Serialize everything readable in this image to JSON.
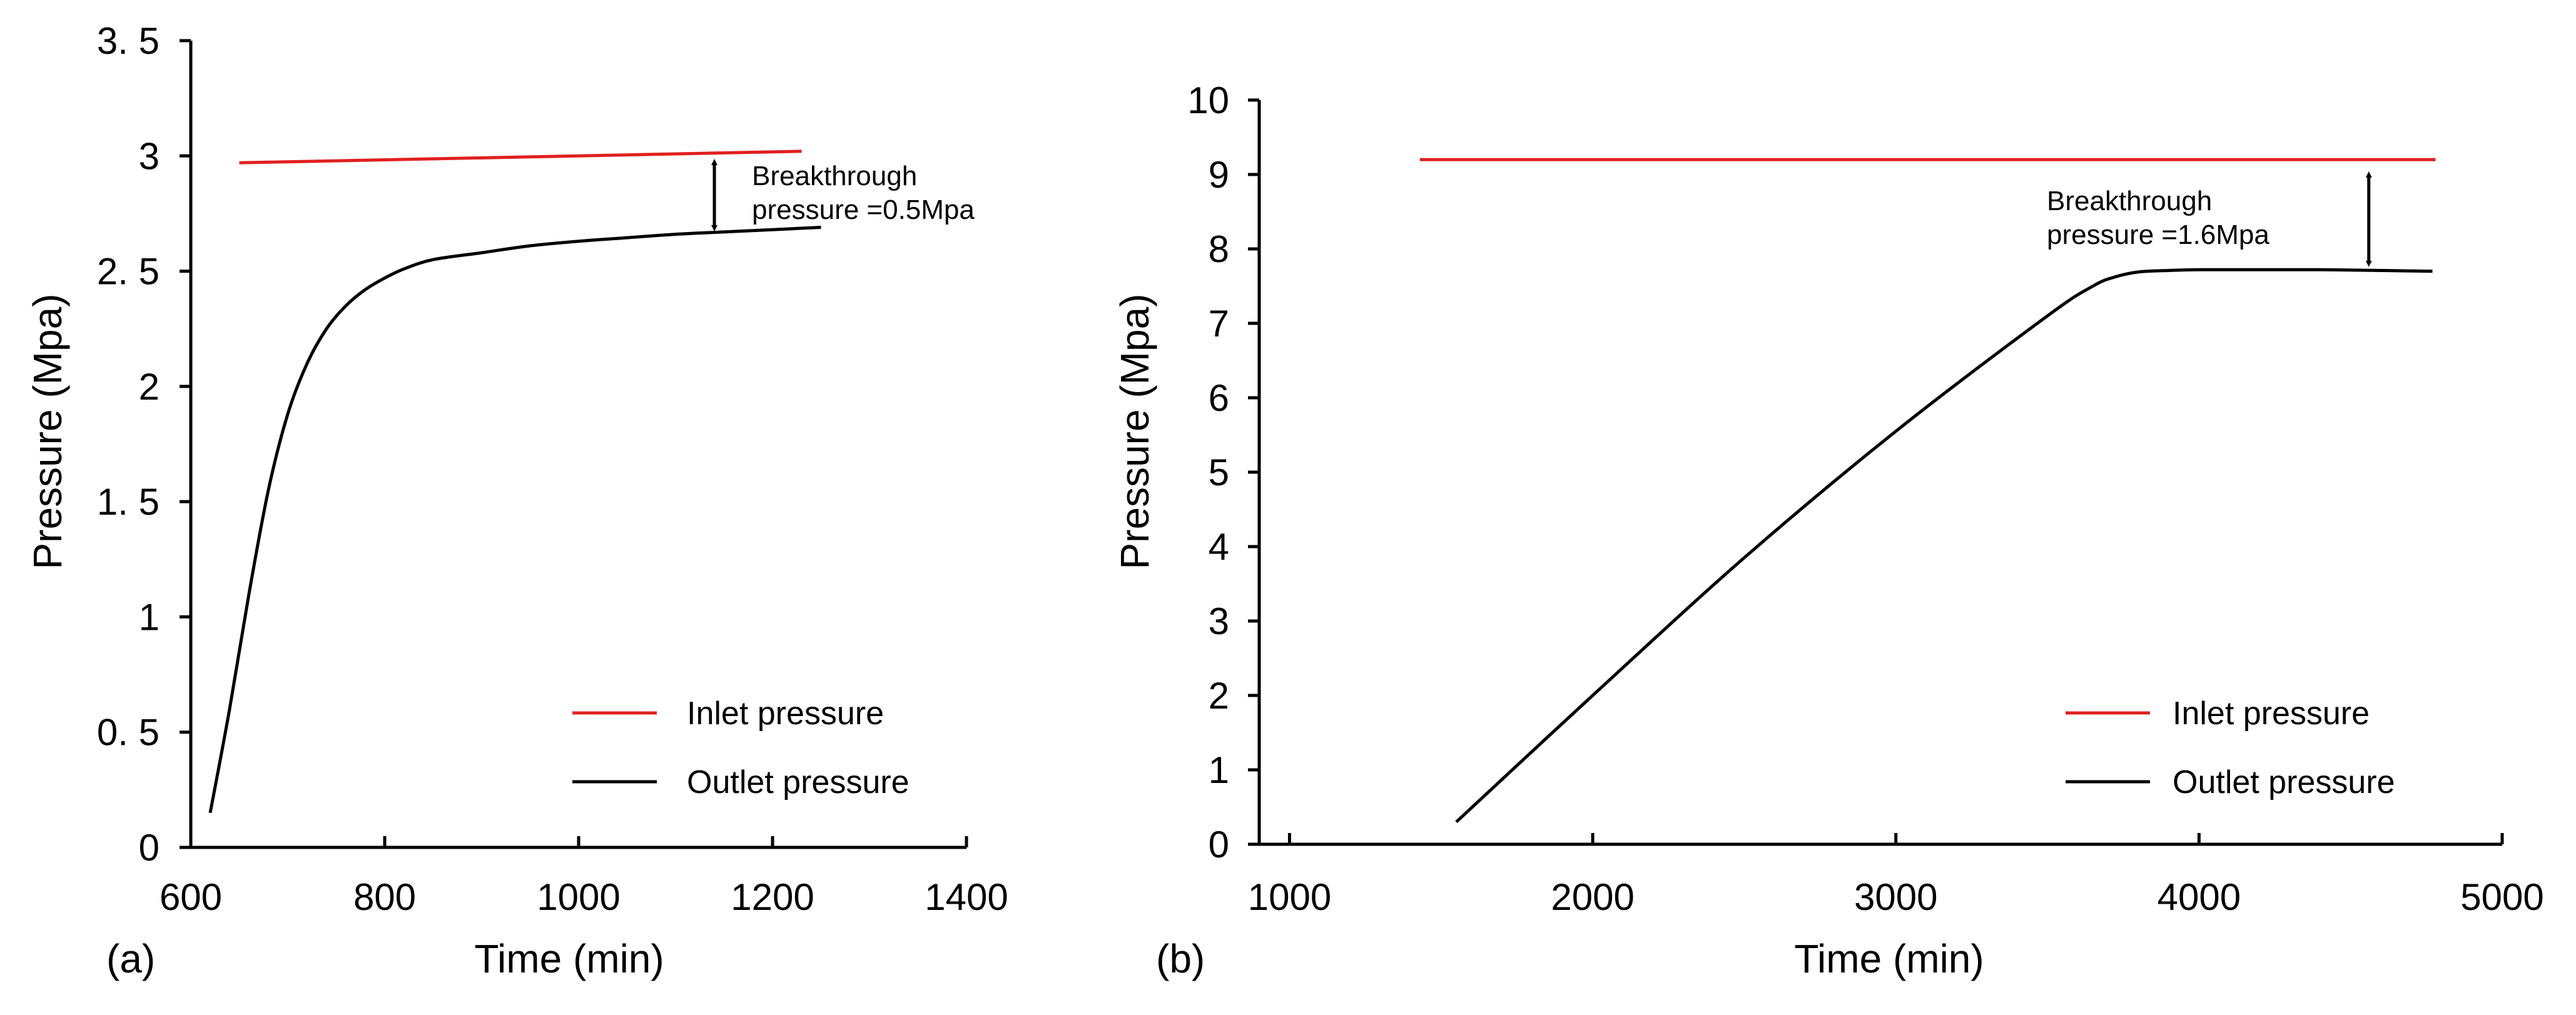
{
  "chart_data": [
    {
      "type": "line",
      "panel_label": "(a)",
      "title": "",
      "xlabel": "Time (min)",
      "ylabel": "Pressure (Mpa)",
      "xlim": [
        600,
        1400
      ],
      "ylim": [
        0,
        3.5
      ],
      "xticks": [
        600,
        800,
        1000,
        1200,
        1400
      ],
      "xtick_labels": [
        "600",
        "800",
        "1000",
        "1200",
        "1400"
      ],
      "yticks": [
        0,
        0.5,
        1,
        1.5,
        2,
        2.5,
        3,
        3.5
      ],
      "ytick_labels": [
        "0",
        "0. 5",
        "1",
        "1. 5",
        "2",
        "2. 5",
        "3",
        "3. 5"
      ],
      "grid": false,
      "legend_position": "bottom-right",
      "series": [
        {
          "name": "Inlet pressure",
          "color": "#e02020",
          "x": [
            650,
            1230
          ],
          "y": [
            2.97,
            3.02
          ]
        },
        {
          "name": "Outlet pressure",
          "color": "#000000",
          "x": [
            620,
            640,
            660,
            680,
            700,
            720,
            740,
            760,
            780,
            800,
            820,
            850,
            900,
            950,
            1000,
            1050,
            1100,
            1150,
            1200,
            1250
          ],
          "y": [
            0.15,
            0.6,
            1.1,
            1.55,
            1.88,
            2.1,
            2.25,
            2.35,
            2.42,
            2.47,
            2.51,
            2.55,
            2.58,
            2.61,
            2.63,
            2.645,
            2.66,
            2.67,
            2.68,
            2.69
          ]
        }
      ],
      "annotation": {
        "lines": [
          "Breakthrough",
          "pressure =0.5Mpa"
        ],
        "arrow_x": 1140,
        "arrow_y_top": 2.99,
        "arrow_y_bottom": 2.67
      }
    },
    {
      "type": "line",
      "panel_label": "(b)",
      "title": "",
      "xlabel": "Time (min)",
      "ylabel": "Pressure (Mpa)",
      "xlim": [
        900,
        5000
      ],
      "ylim": [
        0,
        10
      ],
      "xticks": [
        1000,
        2000,
        3000,
        4000,
        5000
      ],
      "xtick_labels": [
        "1000",
        "2000",
        "3000",
        "4000",
        "5000"
      ],
      "yticks": [
        0,
        1,
        2,
        3,
        4,
        5,
        6,
        7,
        8,
        9,
        10
      ],
      "ytick_labels": [
        "0",
        "1",
        "2",
        "3",
        "4",
        "5",
        "6",
        "7",
        "8",
        "9",
        "10"
      ],
      "grid": false,
      "legend_position": "bottom-right",
      "series": [
        {
          "name": "Inlet pressure",
          "color": "#e02020",
          "x": [
            1430,
            4780
          ],
          "y": [
            9.2,
            9.2
          ]
        },
        {
          "name": "Outlet pressure",
          "color": "#000000",
          "x": [
            1550,
            2000,
            2500,
            3000,
            3500,
            3650,
            3720,
            3800,
            3900,
            4000,
            4200,
            4400,
            4600,
            4770
          ],
          "y": [
            0.3,
            2.0,
            3.85,
            5.55,
            7.1,
            7.5,
            7.62,
            7.69,
            7.71,
            7.72,
            7.72,
            7.72,
            7.71,
            7.7
          ]
        }
      ],
      "annotation": {
        "lines": [
          "Breakthrough",
          "pressure =1.6Mpa"
        ],
        "arrow_x": 4560,
        "arrow_y_top": 9.05,
        "arrow_y_bottom": 7.75
      }
    }
  ]
}
